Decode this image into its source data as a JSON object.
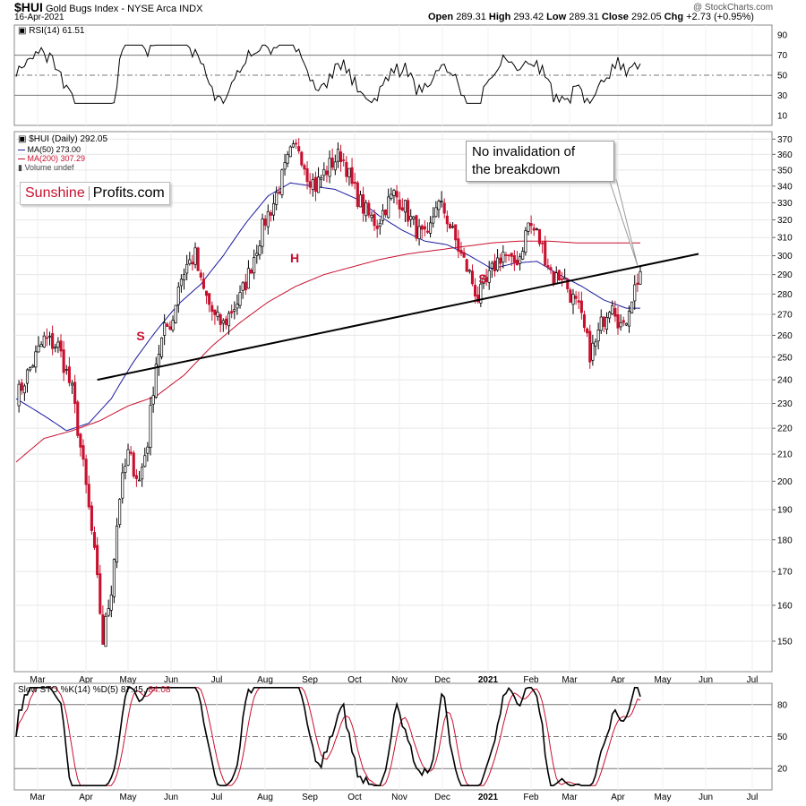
{
  "header": {
    "symbol": "$HUI",
    "name": "Gold Bugs Index - NYSE Arca INDX",
    "date": "16-Apr-2021",
    "open_label": "Open",
    "open": "289.31",
    "high_label": "High",
    "high": "293.42",
    "low_label": "Low",
    "low": "289.31",
    "close_label": "Close",
    "close": "292.05",
    "chg_label": "Chg",
    "chg": "+2.73 (+0.95%)",
    "watermark": "@ StockCharts.com"
  },
  "legend": {
    "rsi": "RSI(14) 61.51",
    "price": "$HUI (Daily) 292.05",
    "ma50": "MA(50) 273.00",
    "ma200": "MA(200) 307.29",
    "volume": "Volume undef",
    "sto": "Slow STO %K(14) %D(5) 87.45,",
    "sto_d": "84.08"
  },
  "brand": {
    "part1": "Sunshine",
    "part2": "Profits.com"
  },
  "annotation": {
    "line1": "No invalidation of",
    "line2": "the breakdown"
  },
  "pattern_labels": [
    "S",
    "H",
    "S"
  ],
  "colors": {
    "up": "#000000",
    "down": "#c8102e",
    "ma50": "#1a1aa0",
    "ma200": "#c8102e"
  },
  "chart_data": [
    {
      "type": "line",
      "name": "RSI(14)",
      "ylim": [
        0,
        100
      ],
      "y_ticks": [
        10,
        30,
        50,
        70,
        90
      ],
      "reference_lines": [
        30,
        50,
        70
      ],
      "last": 61.51
    },
    {
      "type": "candlestick",
      "title": "$HUI (Daily) 292.05",
      "scale": "log",
      "ylim": [
        142,
        375
      ],
      "y_ticks": [
        150,
        160,
        170,
        180,
        190,
        200,
        210,
        220,
        230,
        240,
        250,
        260,
        270,
        280,
        290,
        300,
        310,
        320,
        330,
        340,
        350,
        360,
        370
      ],
      "x_ticks": [
        "Mar",
        "Apr",
        "May",
        "Jun",
        "Jul",
        "Aug",
        "Sep",
        "Oct",
        "Nov",
        "Dec",
        "2021",
        "Feb",
        "Mar",
        "Apr",
        "May",
        "Jun",
        "Jul"
      ],
      "price_path": [
        [
          0,
          232
        ],
        [
          5,
          245
        ],
        [
          10,
          258
        ],
        [
          15,
          255
        ],
        [
          20,
          235
        ],
        [
          24,
          205
        ],
        [
          28,
          175
        ],
        [
          31,
          150
        ],
        [
          34,
          165
        ],
        [
          37,
          195
        ],
        [
          40,
          210
        ],
        [
          44,
          200
        ],
        [
          47,
          215
        ],
        [
          50,
          248
        ],
        [
          53,
          262
        ],
        [
          56,
          268
        ],
        [
          58,
          285
        ],
        [
          61,
          295
        ],
        [
          64,
          300
        ],
        [
          66,
          285
        ],
        [
          68,
          278
        ],
        [
          71,
          268
        ],
        [
          74,
          265
        ],
        [
          77,
          272
        ],
        [
          80,
          278
        ],
        [
          83,
          290
        ],
        [
          86,
          305
        ],
        [
          89,
          320
        ],
        [
          92,
          330
        ],
        [
          95,
          345
        ],
        [
          98,
          360
        ],
        [
          101,
          365
        ],
        [
          104,
          348
        ],
        [
          107,
          340
        ],
        [
          110,
          348
        ],
        [
          113,
          355
        ],
        [
          116,
          360
        ],
        [
          118,
          352
        ],
        [
          120,
          340
        ],
        [
          123,
          330
        ],
        [
          126,
          322
        ],
        [
          129,
          318
        ],
        [
          132,
          328
        ],
        [
          135,
          335
        ],
        [
          138,
          330
        ],
        [
          141,
          320
        ],
        [
          144,
          312
        ],
        [
          147,
          308
        ],
        [
          150,
          330
        ],
        [
          153,
          325
        ],
        [
          156,
          312
        ],
        [
          159,
          300
        ],
        [
          162,
          290
        ],
        [
          165,
          278
        ],
        [
          168,
          285
        ],
        [
          171,
          295
        ],
        [
          174,
          302
        ],
        [
          177,
          295
        ],
        [
          180,
          300
        ],
        [
          183,
          318
        ],
        [
          186,
          312
        ],
        [
          189,
          300
        ],
        [
          192,
          288
        ],
        [
          195,
          290
        ],
        [
          198,
          280
        ],
        [
          201,
          272
        ],
        [
          203,
          262
        ],
        [
          205,
          252
        ],
        [
          207,
          256
        ],
        [
          209,
          265
        ],
        [
          211,
          272
        ],
        [
          213,
          278
        ],
        [
          215,
          268
        ],
        [
          217,
          262
        ],
        [
          219,
          275
        ],
        [
          221,
          283
        ],
        [
          223,
          292
        ]
      ],
      "ma50_path": [
        [
          0,
          232
        ],
        [
          10,
          225
        ],
        [
          18,
          219
        ],
        [
          26,
          222
        ],
        [
          34,
          232
        ],
        [
          42,
          248
        ],
        [
          50,
          262
        ],
        [
          58,
          275
        ],
        [
          66,
          285
        ],
        [
          74,
          300
        ],
        [
          82,
          318
        ],
        [
          90,
          334
        ],
        [
          98,
          342
        ],
        [
          106,
          340
        ],
        [
          114,
          338
        ],
        [
          122,
          332
        ],
        [
          130,
          322
        ],
        [
          138,
          314
        ],
        [
          146,
          308
        ],
        [
          154,
          306
        ],
        [
          162,
          300
        ],
        [
          170,
          293
        ],
        [
          178,
          296
        ],
        [
          186,
          297
        ],
        [
          194,
          290
        ],
        [
          202,
          284
        ],
        [
          210,
          277
        ],
        [
          218,
          273
        ],
        [
          223,
          273
        ]
      ],
      "ma200_path": [
        [
          0,
          207
        ],
        [
          10,
          216
        ],
        [
          20,
          219
        ],
        [
          30,
          223
        ],
        [
          40,
          229
        ],
        [
          50,
          233
        ],
        [
          60,
          242
        ],
        [
          70,
          255
        ],
        [
          80,
          266
        ],
        [
          90,
          276
        ],
        [
          100,
          284
        ],
        [
          110,
          290
        ],
        [
          120,
          294
        ],
        [
          130,
          298
        ],
        [
          140,
          301
        ],
        [
          150,
          303
        ],
        [
          160,
          305
        ],
        [
          170,
          307
        ],
        [
          180,
          308
        ],
        [
          190,
          308
        ],
        [
          200,
          307
        ],
        [
          210,
          307
        ],
        [
          218,
          307
        ],
        [
          223,
          307
        ]
      ],
      "trendline": {
        "from": [
          29,
          240
        ],
        "to": [
          240,
          301
        ]
      },
      "last_close": 292.05
    },
    {
      "type": "line",
      "name": "Slow STO %K(14) %D(5)",
      "series": [
        {
          "name": "%K",
          "last": 87.45
        },
        {
          "name": "%D",
          "last": 84.08
        }
      ],
      "ylim": [
        0,
        100
      ],
      "y_ticks": [
        20,
        50,
        80
      ],
      "reference_lines": [
        20,
        50,
        80
      ]
    }
  ]
}
